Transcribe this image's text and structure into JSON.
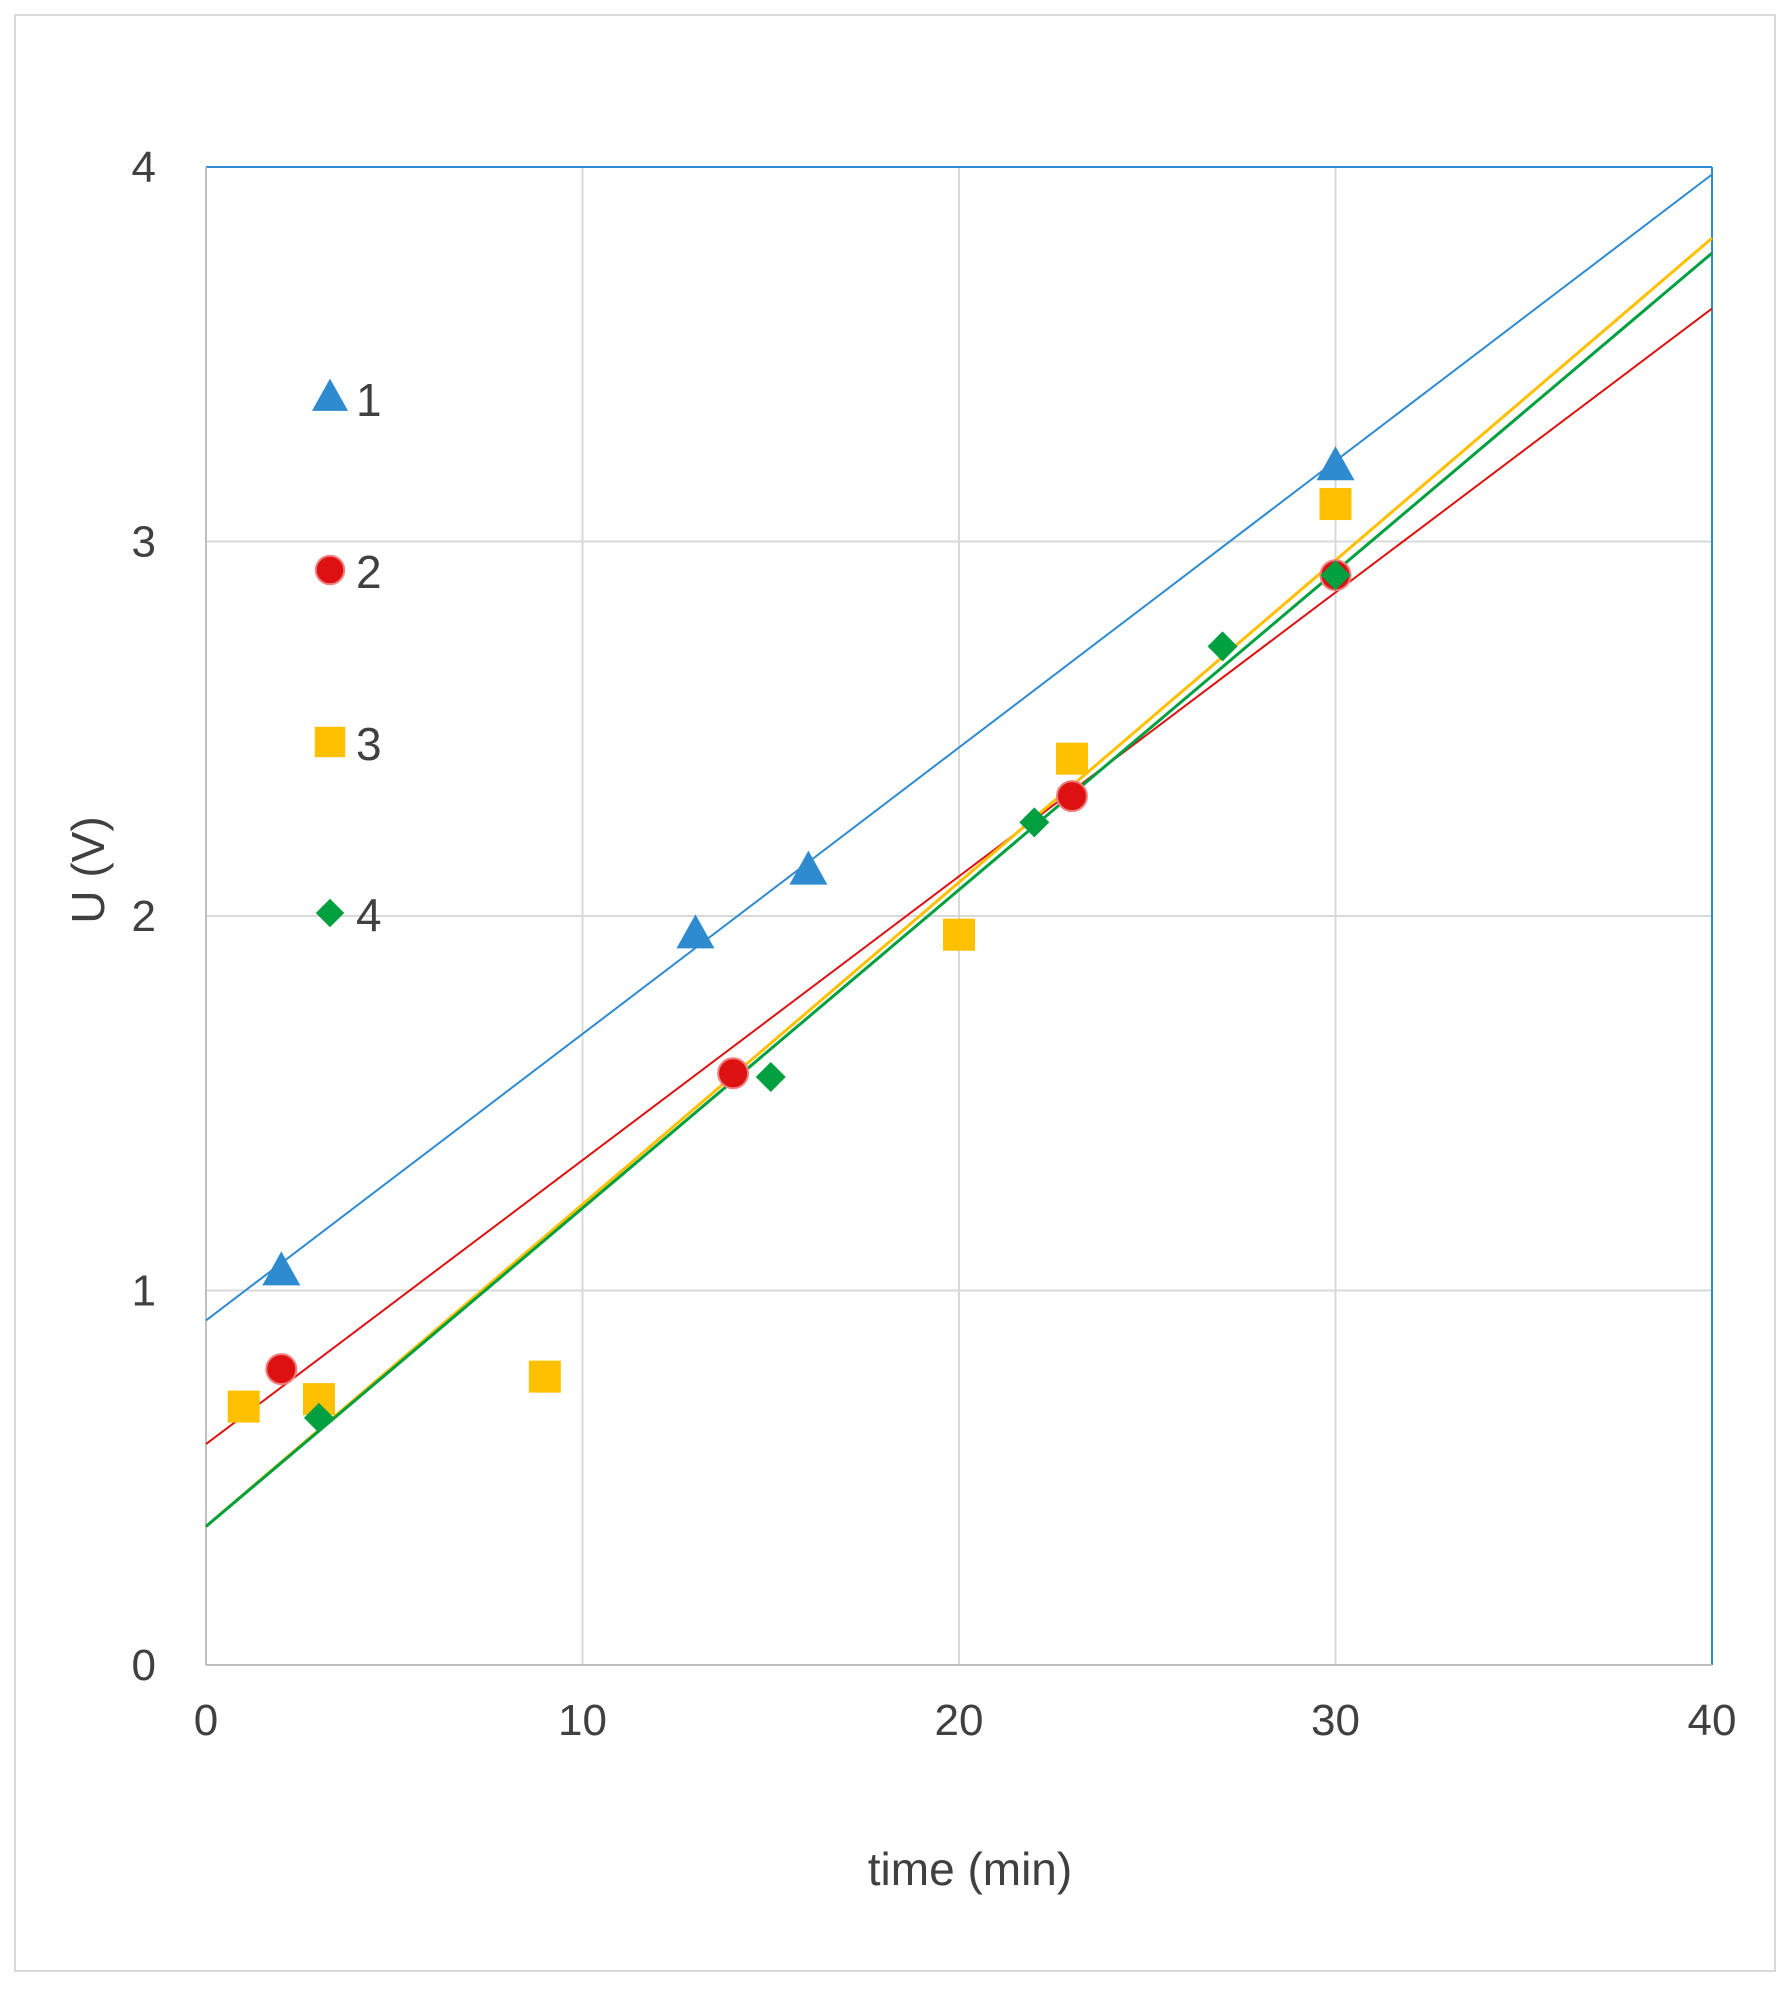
{
  "chart_data": {
    "type": "scatter",
    "title": "",
    "xlabel": "time (min)",
    "ylabel": "U (V)",
    "xlim": [
      0,
      40
    ],
    "ylim": [
      0,
      4
    ],
    "xticks": [
      0,
      10,
      20,
      30,
      40
    ],
    "yticks": [
      0,
      1,
      2,
      3,
      4
    ],
    "grid": true,
    "legend_position": "top-left (inside plot)",
    "series": [
      {
        "name": "1",
        "marker": "triangle",
        "color": "#2e8bd0",
        "x": [
          2,
          13,
          16,
          30
        ],
        "y": [
          1.05,
          1.95,
          2.12,
          3.2
        ],
        "trendline": {
          "intercept": 0.92,
          "slope": 0.0765
        }
      },
      {
        "name": "2",
        "marker": "circle",
        "color": "#dd1111",
        "x": [
          2,
          14,
          23,
          30
        ],
        "y": [
          0.79,
          1.58,
          2.32,
          2.91
        ],
        "trendline": {
          "intercept": 0.59,
          "slope": 0.0758
        }
      },
      {
        "name": "3",
        "marker": "square",
        "color": "#ffc000",
        "x": [
          1,
          3,
          9,
          20,
          23,
          30
        ],
        "y": [
          0.69,
          0.71,
          0.77,
          1.95,
          2.42,
          3.1
        ],
        "trendline": {
          "intercept": 0.37,
          "slope": 0.086
        }
      },
      {
        "name": "4",
        "marker": "diamond",
        "color": "#00a040",
        "x": [
          3,
          15,
          22,
          27,
          30
        ],
        "y": [
          0.66,
          1.57,
          2.25,
          2.72,
          2.91
        ],
        "trendline": {
          "intercept": 0.37,
          "slope": 0.085
        }
      }
    ]
  }
}
